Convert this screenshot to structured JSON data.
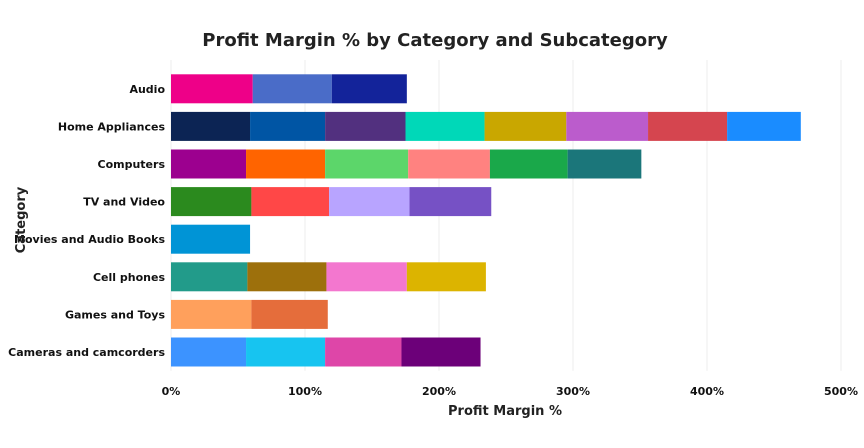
{
  "chart_data": {
    "type": "bar",
    "orientation": "horizontal",
    "stacked": true,
    "title": "Profit Margin % by Category and Subcategory",
    "xlabel": "Profit Margin %",
    "ylabel": "Category",
    "xlim": [
      0,
      500
    ],
    "x_ticks": [
      "0%",
      "100%",
      "200%",
      "300%",
      "400%",
      "500%"
    ],
    "grid": true,
    "legend": "none",
    "categories": [
      "Audio",
      "Home Appliances",
      "Computers",
      "TV and Video",
      "Movies and Audio Books",
      "Cell phones",
      "Games and Toys",
      "Cameras and camcorders"
    ],
    "segments": [
      {
        "values": [
          61,
          59,
          56
        ],
        "colors": [
          "#ee0088",
          "#4a6cc8",
          "#13239a"
        ]
      },
      {
        "values": [
          59,
          56,
          60,
          59,
          61,
          61,
          59,
          55
        ],
        "colors": [
          "#0c2454",
          "#0055a4",
          "#52307f",
          "#00d8b8",
          "#c9a700",
          "#bb5ccc",
          "#d5454f",
          "#1a8cff"
        ]
      },
      {
        "values": [
          56,
          59,
          62,
          61,
          58,
          55
        ],
        "colors": [
          "#9c008f",
          "#ff6400",
          "#5cd66a",
          "#ff8280",
          "#1aa84a",
          "#1b767a"
        ]
      },
      {
        "values": [
          60,
          58,
          60,
          61
        ],
        "colors": [
          "#2b8a1e",
          "#ff4747",
          "#b8a4ff",
          "#7651c5"
        ]
      },
      {
        "values": [
          59
        ],
        "colors": [
          "#0094d6"
        ]
      },
      {
        "values": [
          57,
          59,
          60,
          59
        ],
        "colors": [
          "#229b8a",
          "#9d700c",
          "#f377cf",
          "#dcb400"
        ]
      },
      {
        "values": [
          60,
          57
        ],
        "colors": [
          "#ffa05c",
          "#e56d3b"
        ]
      },
      {
        "values": [
          56,
          59,
          57,
          59
        ],
        "colors": [
          "#3c93ff",
          "#17c4f0",
          "#de46a8",
          "#6c0079"
        ]
      }
    ]
  }
}
